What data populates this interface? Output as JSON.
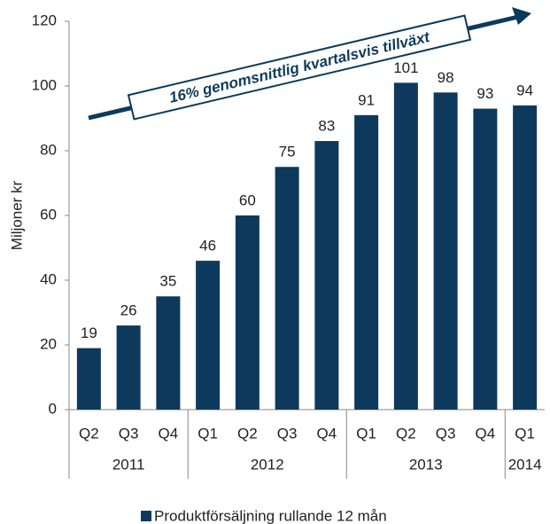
{
  "chart_data": {
    "type": "bar",
    "y_label": "Miljoner kr",
    "categories": [
      "Q2",
      "Q3",
      "Q4",
      "Q1",
      "Q2",
      "Q3",
      "Q4",
      "Q1",
      "Q2",
      "Q3",
      "Q4",
      "Q1"
    ],
    "groups": [
      {
        "label": "2011",
        "count": 3
      },
      {
        "label": "2012",
        "count": 4
      },
      {
        "label": "2013",
        "count": 4
      },
      {
        "label": "2014",
        "count": 1
      }
    ],
    "series": [
      {
        "name": "Produktförsäljning rullande 12 mån",
        "color": "#0d3a5c",
        "values": [
          19,
          26,
          35,
          46,
          60,
          75,
          83,
          91,
          101,
          98,
          93,
          94
        ]
      }
    ],
    "ylim": [
      0,
      120
    ],
    "yticks": [
      0,
      20,
      40,
      60,
      80,
      100,
      120
    ],
    "annotation": "16% genomsnittlig kvartalsvis tillväxt"
  }
}
